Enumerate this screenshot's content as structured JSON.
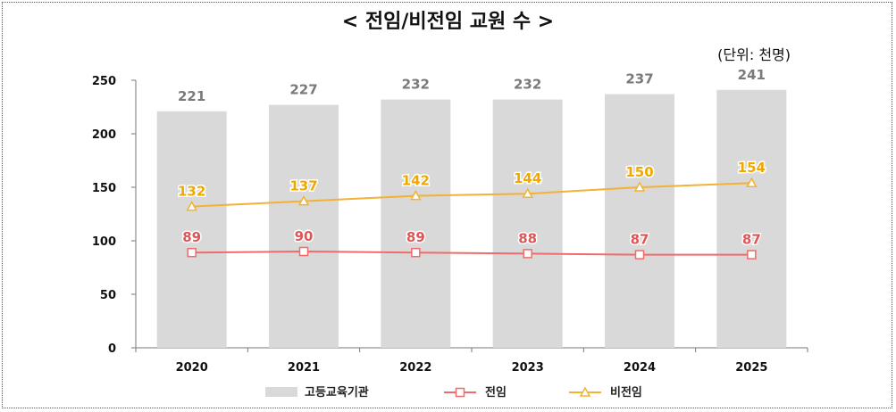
{
  "title": "< 전임/비전임 교원 수 >",
  "unit": "(단위: 천명)",
  "chart_data": {
    "type": "bar",
    "categories": [
      "2020",
      "2021",
      "2022",
      "2023",
      "2024",
      "2025"
    ],
    "ylim": [
      0,
      250
    ],
    "yticks": [
      "0",
      "50",
      "100",
      "150",
      "200",
      "250"
    ],
    "grid": false,
    "legend_position": "bottom",
    "series": [
      {
        "name": "고등교육기관",
        "kind": "bar",
        "values": [
          221,
          227,
          232,
          232,
          237,
          241
        ],
        "color": "#d9d9d9",
        "label_color": "#7a7a7a"
      },
      {
        "name": "전임",
        "kind": "line",
        "marker": "square",
        "values": [
          89,
          90,
          89,
          88,
          87,
          87
        ],
        "color": "#f06b6b",
        "label_color": "#e05555"
      },
      {
        "name": "비전임",
        "kind": "line",
        "marker": "triangle",
        "values": [
          132,
          137,
          142,
          144,
          150,
          154
        ],
        "color": "#f2b233",
        "label_color": "#f0a800"
      }
    ]
  }
}
